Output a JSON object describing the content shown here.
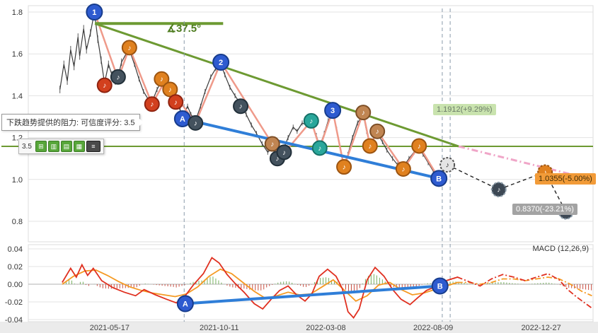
{
  "chart_data": [
    {
      "type": "candlestick",
      "panel": "price",
      "title": "",
      "ylim": [
        0.78,
        1.84
      ],
      "y_ticks": [
        1.8,
        1.6,
        1.4,
        1.2,
        1.0,
        0.8
      ],
      "x_tick_labels": [
        "2021-05-17",
        "2021-10-11",
        "2022-03-08",
        "2022-08-09",
        "2022-12-27"
      ],
      "x_tick_pos": [
        0.144,
        0.338,
        0.527,
        0.717,
        0.908
      ],
      "price_series": [
        [
          0.056,
          1.43
        ],
        [
          0.063,
          1.55
        ],
        [
          0.069,
          1.47
        ],
        [
          0.075,
          1.62
        ],
        [
          0.081,
          1.54
        ],
        [
          0.088,
          1.68
        ],
        [
          0.091,
          1.59
        ],
        [
          0.098,
          1.72
        ],
        [
          0.103,
          1.62
        ],
        [
          0.11,
          1.7
        ],
        [
          0.117,
          1.8
        ],
        [
          0.123,
          1.67
        ],
        [
          0.129,
          1.57
        ],
        [
          0.135,
          1.46
        ],
        [
          0.142,
          1.55
        ],
        [
          0.148,
          1.5
        ],
        [
          0.154,
          1.47
        ],
        [
          0.159,
          1.49
        ],
        [
          0.165,
          1.56
        ],
        [
          0.173,
          1.6
        ],
        [
          0.179,
          1.62
        ],
        [
          0.188,
          1.55
        ],
        [
          0.196,
          1.48
        ],
        [
          0.204,
          1.42
        ],
        [
          0.213,
          1.38
        ],
        [
          0.219,
          1.37
        ],
        [
          0.228,
          1.43
        ],
        [
          0.236,
          1.47
        ],
        [
          0.242,
          1.46
        ],
        [
          0.251,
          1.42
        ],
        [
          0.261,
          1.38
        ],
        [
          0.269,
          1.33
        ],
        [
          0.273,
          1.3
        ],
        [
          0.282,
          1.35
        ],
        [
          0.288,
          1.31
        ],
        [
          0.296,
          1.28
        ],
        [
          0.305,
          1.35
        ],
        [
          0.313,
          1.42
        ],
        [
          0.323,
          1.49
        ],
        [
          0.332,
          1.53
        ],
        [
          0.341,
          1.55
        ],
        [
          0.348,
          1.5
        ],
        [
          0.357,
          1.44
        ],
        [
          0.366,
          1.4
        ],
        [
          0.376,
          1.36
        ],
        [
          0.386,
          1.31
        ],
        [
          0.395,
          1.26
        ],
        [
          0.404,
          1.22
        ],
        [
          0.414,
          1.17
        ],
        [
          0.424,
          1.13
        ],
        [
          0.432,
          1.15
        ],
        [
          0.439,
          1.11
        ],
        [
          0.445,
          1.1
        ],
        [
          0.451,
          1.14
        ],
        [
          0.46,
          1.2
        ],
        [
          0.469,
          1.25
        ],
        [
          0.476,
          1.23
        ],
        [
          0.485,
          1.27
        ],
        [
          0.492,
          1.26
        ],
        [
          0.501,
          1.27
        ],
        [
          0.51,
          1.21
        ],
        [
          0.516,
          1.16
        ],
        [
          0.524,
          1.22
        ],
        [
          0.531,
          1.28
        ],
        [
          0.539,
          1.32
        ],
        [
          0.546,
          1.24
        ],
        [
          0.553,
          1.14
        ],
        [
          0.559,
          1.07
        ],
        [
          0.566,
          1.12
        ],
        [
          0.574,
          1.2
        ],
        [
          0.583,
          1.27
        ],
        [
          0.593,
          1.31
        ],
        [
          0.599,
          1.23
        ],
        [
          0.605,
          1.17
        ],
        [
          0.612,
          1.2
        ],
        [
          0.618,
          1.22
        ],
        [
          0.627,
          1.18
        ],
        [
          0.635,
          1.14
        ],
        [
          0.645,
          1.1
        ],
        [
          0.654,
          1.07
        ],
        [
          0.664,
          1.06
        ],
        [
          0.674,
          1.1
        ],
        [
          0.683,
          1.13
        ],
        [
          0.692,
          1.15
        ],
        [
          0.699,
          1.12
        ],
        [
          0.708,
          1.08
        ],
        [
          0.717,
          1.04
        ],
        [
          0.727,
          1.01
        ],
        [
          0.736,
          1.05
        ],
        [
          0.742,
          1.07
        ]
      ],
      "zigzag": [
        [
          0.117,
          1.8
        ],
        [
          0.159,
          1.48
        ],
        [
          0.179,
          1.63
        ],
        [
          0.219,
          1.36
        ],
        [
          0.242,
          1.47
        ],
        [
          0.296,
          1.27
        ],
        [
          0.341,
          1.56
        ],
        [
          0.432,
          1.17
        ],
        [
          0.445,
          1.1
        ],
        [
          0.501,
          1.28
        ],
        [
          0.516,
          1.15
        ],
        [
          0.539,
          1.33
        ],
        [
          0.559,
          1.06
        ],
        [
          0.593,
          1.32
        ],
        [
          0.605,
          1.16
        ],
        [
          0.618,
          1.23
        ],
        [
          0.664,
          1.05
        ],
        [
          0.692,
          1.16
        ],
        [
          0.727,
          1.005
        ]
      ],
      "trend_line": {
        "from": [
          0.118,
          1.745
        ],
        "to": [
          0.762,
          1.158
        ]
      },
      "angle_ref_line": {
        "from": [
          0.118,
          1.745
        ],
        "to": [
          0.345,
          1.745
        ]
      },
      "angle_label": {
        "text": "∡37.5°",
        "x": 0.245,
        "p": 1.705
      },
      "support_line": {
        "price": 1.158
      },
      "ab_line": {
        "from": [
          0.273,
          1.29
        ],
        "to": [
          0.727,
          1.005
        ]
      },
      "projection_pink": {
        "from": [
          0.762,
          1.158
        ],
        "to": [
          0.998,
          1.0
        ]
      },
      "projection_black": {
        "points": [
          [
            0.742,
            1.07
          ],
          [
            0.833,
            0.952
          ],
          [
            0.915,
            1.035
          ],
          [
            0.952,
            0.845
          ]
        ]
      },
      "vlines": [
        0.276,
        0.733,
        0.747
      ],
      "markers": [
        {
          "x": 0.117,
          "p": 1.8,
          "g": "1",
          "c": "blue",
          "kind": "point"
        },
        {
          "x": 0.341,
          "p": 1.56,
          "g": "2",
          "c": "blue",
          "kind": "point"
        },
        {
          "x": 0.539,
          "p": 1.33,
          "g": "3",
          "c": "blue",
          "kind": "point"
        },
        {
          "x": 0.273,
          "p": 1.29,
          "g": "A",
          "c": "blue",
          "kind": "point"
        },
        {
          "x": 0.727,
          "p": 1.005,
          "g": "B",
          "c": "blue",
          "kind": "point"
        },
        {
          "x": 0.135,
          "p": 1.45,
          "g": "♪",
          "c": "red",
          "kind": "note"
        },
        {
          "x": 0.159,
          "p": 1.49,
          "g": "♪",
          "c": "dark",
          "kind": "note"
        },
        {
          "x": 0.179,
          "p": 1.63,
          "g": "♪",
          "c": "orange",
          "kind": "note"
        },
        {
          "x": 0.219,
          "p": 1.36,
          "g": "♪",
          "c": "red",
          "kind": "note"
        },
        {
          "x": 0.236,
          "p": 1.48,
          "g": "♪",
          "c": "orange",
          "kind": "note"
        },
        {
          "x": 0.251,
          "p": 1.43,
          "g": "♪",
          "c": "orange",
          "kind": "note"
        },
        {
          "x": 0.261,
          "p": 1.37,
          "g": "♪",
          "c": "red",
          "kind": "note"
        },
        {
          "x": 0.296,
          "p": 1.27,
          "g": "♪",
          "c": "dark",
          "kind": "note"
        },
        {
          "x": 0.376,
          "p": 1.35,
          "g": "♪",
          "c": "dark",
          "kind": "note"
        },
        {
          "x": 0.432,
          "p": 1.17,
          "g": "♪",
          "c": "brown",
          "kind": "note"
        },
        {
          "x": 0.441,
          "p": 1.1,
          "g": "♪",
          "c": "dark",
          "kind": "note"
        },
        {
          "x": 0.453,
          "p": 1.13,
          "g": "♪",
          "c": "dark",
          "kind": "note"
        },
        {
          "x": 0.501,
          "p": 1.28,
          "g": "♪",
          "c": "teal",
          "kind": "note"
        },
        {
          "x": 0.516,
          "p": 1.15,
          "g": "♪",
          "c": "teal",
          "kind": "note"
        },
        {
          "x": 0.559,
          "p": 1.06,
          "g": "♪",
          "c": "orange",
          "kind": "note"
        },
        {
          "x": 0.593,
          "p": 1.32,
          "g": "♪",
          "c": "brown",
          "kind": "note"
        },
        {
          "x": 0.605,
          "p": 1.16,
          "g": "♪",
          "c": "orange",
          "kind": "note"
        },
        {
          "x": 0.618,
          "p": 1.23,
          "g": "♪",
          "c": "brown",
          "kind": "note"
        },
        {
          "x": 0.664,
          "p": 1.05,
          "g": "♪",
          "c": "orange",
          "kind": "note"
        },
        {
          "x": 0.692,
          "p": 1.16,
          "g": "♪",
          "c": "orange",
          "kind": "note"
        },
        {
          "x": 0.742,
          "p": 1.07,
          "g": "♪",
          "c": "hollow",
          "kind": "forecast",
          "dash": true
        },
        {
          "x": 0.833,
          "p": 0.952,
          "g": "♪",
          "c": "darkfc",
          "kind": "forecast",
          "dash": true
        },
        {
          "x": 0.915,
          "p": 1.035,
          "g": "♪",
          "c": "orangefc",
          "kind": "forecast",
          "dash": true
        },
        {
          "x": 0.952,
          "p": 0.845,
          "g": "♪",
          "c": "darkfc",
          "kind": "forecast",
          "dash": true
        }
      ],
      "palette": {
        "blue": [
          "#2e5bd0",
          "#173c8c"
        ],
        "red": [
          "#d2401e",
          "#8f2310"
        ],
        "dark": [
          "#44525e",
          "#22303a"
        ],
        "orange": [
          "#e0811f",
          "#9c5410"
        ],
        "teal": [
          "#2aa79b",
          "#157067"
        ],
        "brown": [
          "#c08552",
          "#7d4e26"
        ],
        "hollow": [
          "#e4e4e4",
          "#555555"
        ],
        "darkfc": [
          "#3d4854",
          "#8899a6"
        ],
        "orangefc": [
          "#e0811f",
          "#9c5410"
        ]
      },
      "colors": {
        "price": "#3b3b3b",
        "zigzag": "#ef9a8a",
        "trend": "#6d9a32",
        "support": "#6d9a32",
        "ab": "#2f7ed8",
        "pink": "#f0a6c8",
        "black_dash": "#222222",
        "vline": "#8a9aaa",
        "grid": "#e3e3e3",
        "tick_text": "#333333"
      }
    },
    {
      "type": "macd",
      "panel": "indicator",
      "label": "MACD (12,26,9)",
      "ylim": [
        -0.045,
        0.045
      ],
      "y_ticks": [
        0.04,
        0.02,
        0,
        -0.02,
        -0.04
      ],
      "dashed_from": 0.75,
      "hist_scale": 0.5,
      "dif": [
        [
          0.06,
          0.002
        ],
        [
          0.075,
          0.018
        ],
        [
          0.085,
          0.008
        ],
        [
          0.095,
          0.022
        ],
        [
          0.105,
          0.01
        ],
        [
          0.115,
          0.018
        ],
        [
          0.13,
          0.004
        ],
        [
          0.15,
          -0.004
        ],
        [
          0.17,
          -0.009
        ],
        [
          0.19,
          -0.013
        ],
        [
          0.205,
          -0.006
        ],
        [
          0.225,
          -0.012
        ],
        [
          0.245,
          -0.017
        ],
        [
          0.262,
          -0.021
        ],
        [
          0.278,
          -0.013
        ],
        [
          0.292,
          -0.001
        ],
        [
          0.31,
          0.012
        ],
        [
          0.325,
          0.03
        ],
        [
          0.338,
          0.024
        ],
        [
          0.352,
          0.011
        ],
        [
          0.366,
          0.001
        ],
        [
          0.382,
          -0.009
        ],
        [
          0.4,
          -0.022
        ],
        [
          0.415,
          -0.028
        ],
        [
          0.43,
          -0.017
        ],
        [
          0.445,
          -0.007
        ],
        [
          0.46,
          -0.002
        ],
        [
          0.475,
          -0.012
        ],
        [
          0.49,
          -0.019
        ],
        [
          0.502,
          -0.011
        ],
        [
          0.515,
          0.009
        ],
        [
          0.53,
          0.017
        ],
        [
          0.545,
          0.009
        ],
        [
          0.556,
          -0.005
        ],
        [
          0.566,
          -0.031
        ],
        [
          0.576,
          -0.038
        ],
        [
          0.586,
          -0.028
        ],
        [
          0.6,
          0.005
        ],
        [
          0.614,
          0.019
        ],
        [
          0.63,
          0.009
        ],
        [
          0.645,
          -0.006
        ],
        [
          0.66,
          -0.017
        ],
        [
          0.676,
          -0.023
        ],
        [
          0.69,
          -0.015
        ],
        [
          0.705,
          -0.007
        ],
        [
          0.72,
          -0.003
        ],
        [
          0.74,
          0.004
        ],
        [
          0.76,
          0.008
        ],
        [
          0.78,
          0.003
        ],
        [
          0.8,
          -0.002
        ],
        [
          0.82,
          0.006
        ],
        [
          0.84,
          0.011
        ],
        [
          0.86,
          0.008
        ],
        [
          0.88,
          0.004
        ],
        [
          0.9,
          0.008
        ],
        [
          0.92,
          0.012
        ],
        [
          0.94,
          0.005
        ],
        [
          0.955,
          -0.006
        ],
        [
          0.97,
          -0.014
        ],
        [
          0.985,
          -0.021
        ],
        [
          0.998,
          -0.027
        ]
      ],
      "dea": [
        [
          0.06,
          0.0
        ],
        [
          0.08,
          0.009
        ],
        [
          0.1,
          0.015
        ],
        [
          0.12,
          0.016
        ],
        [
          0.14,
          0.01
        ],
        [
          0.16,
          0.003
        ],
        [
          0.18,
          -0.003
        ],
        [
          0.2,
          -0.007
        ],
        [
          0.22,
          -0.01
        ],
        [
          0.24,
          -0.012
        ],
        [
          0.26,
          -0.014
        ],
        [
          0.28,
          -0.011
        ],
        [
          0.3,
          -0.003
        ],
        [
          0.32,
          0.009
        ],
        [
          0.34,
          0.017
        ],
        [
          0.36,
          0.012
        ],
        [
          0.38,
          0.002
        ],
        [
          0.4,
          -0.008
        ],
        [
          0.42,
          -0.016
        ],
        [
          0.44,
          -0.013
        ],
        [
          0.46,
          -0.009
        ],
        [
          0.48,
          -0.012
        ],
        [
          0.5,
          -0.011
        ],
        [
          0.52,
          -0.003
        ],
        [
          0.54,
          0.005
        ],
        [
          0.56,
          -0.007
        ],
        [
          0.58,
          -0.019
        ],
        [
          0.6,
          -0.013
        ],
        [
          0.62,
          -0.001
        ],
        [
          0.64,
          0.002
        ],
        [
          0.66,
          -0.006
        ],
        [
          0.68,
          -0.012
        ],
        [
          0.7,
          -0.01
        ],
        [
          0.72,
          -0.006
        ],
        [
          0.74,
          -0.002
        ],
        [
          0.76,
          0.002
        ],
        [
          0.78,
          0.002
        ],
        [
          0.8,
          0.0
        ],
        [
          0.82,
          0.002
        ],
        [
          0.84,
          0.006
        ],
        [
          0.86,
          0.006
        ],
        [
          0.88,
          0.004
        ],
        [
          0.9,
          0.006
        ],
        [
          0.92,
          0.008
        ],
        [
          0.94,
          0.006
        ],
        [
          0.96,
          0.0
        ],
        [
          0.98,
          -0.008
        ],
        [
          0.998,
          -0.013
        ]
      ],
      "ab_line": {
        "from": [
          0.278,
          -0.022
        ],
        "to": [
          0.729,
          -0.002
        ]
      },
      "ab_markers": [
        {
          "x": 0.278,
          "v": -0.022,
          "g": "A"
        },
        {
          "x": 0.729,
          "v": -0.002,
          "g": "B"
        }
      ],
      "colors": {
        "dif": "#e03020",
        "dea": "#f59a23",
        "hist_pos": "#69a84f",
        "hist_neg": "#c0392b",
        "ab": "#2f7ed8",
        "zero": "#b0b0b0",
        "grid": "#e3e3e3",
        "label_text": "#333333"
      }
    }
  ],
  "overlays": {
    "tooltip": {
      "text": "下跌趋势提供的阻力: 可信度评分: 3.5"
    },
    "toolbar": {
      "score": "3.5",
      "buttons": [
        {
          "glyph": "⊞"
        },
        {
          "glyph": "▥"
        },
        {
          "glyph": "▤"
        },
        {
          "glyph": "▦"
        },
        {
          "glyph": "≡"
        }
      ]
    },
    "price_tags": [
      {
        "text": "1.1912(+9.29%)"
      },
      {
        "text": "1.0355(-5.00%)"
      },
      {
        "text": "0.8370(-23.21%)"
      }
    ]
  }
}
